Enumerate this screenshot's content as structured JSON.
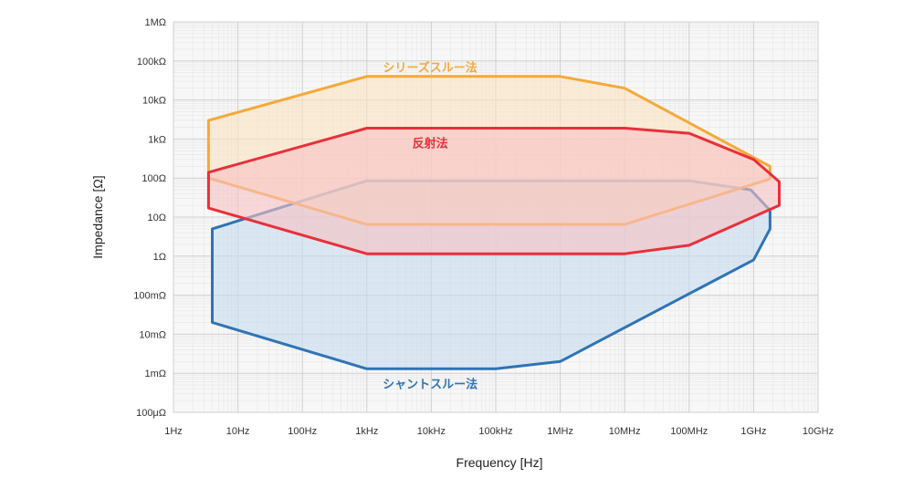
{
  "chart_data": {
    "type": "area",
    "xlabel": "Frequency [Hz]",
    "ylabel": "Impedance [Ω]",
    "x_scale": "log",
    "y_scale": "log",
    "xlim": [
      1,
      10000000000
    ],
    "ylim": [
      0.0001,
      1000000
    ],
    "grid": true,
    "x_ticks": [
      {
        "value": 1,
        "label": "1Hz"
      },
      {
        "value": 10,
        "label": "10Hz"
      },
      {
        "value": 100,
        "label": "100Hz"
      },
      {
        "value": 1000,
        "label": "1kHz"
      },
      {
        "value": 10000,
        "label": "10kHz"
      },
      {
        "value": 100000,
        "label": "100kHz"
      },
      {
        "value": 1000000,
        "label": "1MHz"
      },
      {
        "value": 10000000,
        "label": "10MHz"
      },
      {
        "value": 100000000,
        "label": "100MHz"
      },
      {
        "value": 1000000000,
        "label": "1GHz"
      },
      {
        "value": 10000000000,
        "label": "10GHz"
      }
    ],
    "y_ticks": [
      {
        "value": 0.0001,
        "label": "100μΩ"
      },
      {
        "value": 0.001,
        "label": "1mΩ"
      },
      {
        "value": 0.01,
        "label": "10mΩ"
      },
      {
        "value": 0.1,
        "label": "100mΩ"
      },
      {
        "value": 1,
        "label": "1Ω"
      },
      {
        "value": 10,
        "label": "10Ω"
      },
      {
        "value": 100,
        "label": "100Ω"
      },
      {
        "value": 1000,
        "label": "1kΩ"
      },
      {
        "value": 10000,
        "label": "10kΩ"
      },
      {
        "value": 100000,
        "label": "100kΩ"
      },
      {
        "value": 1000000,
        "label": "1MΩ"
      }
    ],
    "series": [
      {
        "name": "シャントスルー法",
        "color": "#2f74b5",
        "fill": "#c6dcef",
        "label_at": [
          30000000,
          0.00055
        ],
        "points": [
          [
            4,
            5
          ],
          [
            1000,
            85
          ],
          [
            100000000,
            85
          ],
          [
            900000000,
            50
          ],
          [
            1800000000,
            15
          ],
          [
            1800000000,
            5
          ],
          [
            1000000000,
            0.8
          ],
          [
            1000000,
            0.002
          ],
          [
            100000,
            0.0013
          ],
          [
            1000,
            0.0013
          ],
          [
            4,
            0.02
          ]
        ]
      },
      {
        "name": "シリーズスルー法",
        "color": "#f4a93a",
        "fill": "#fbe3c0",
        "label_at": [
          30000000,
          70000
        ],
        "points": [
          [
            3.5,
            3000
          ],
          [
            1000,
            40000
          ],
          [
            1000000,
            40000
          ],
          [
            10000000,
            20000
          ],
          [
            1800000000,
            200
          ],
          [
            1800000000,
            95
          ],
          [
            10000000,
            6.5
          ],
          [
            1000,
            6.5
          ],
          [
            3.5,
            100
          ]
        ]
      },
      {
        "name": "反射法",
        "color": "#e8303a",
        "fill": "#f6c2c3",
        "label_at": [
          30000000,
          800
        ],
        "points": [
          [
            3.5,
            140
          ],
          [
            1000,
            1900
          ],
          [
            10000000,
            1900
          ],
          [
            100000000,
            1400
          ],
          [
            1000000000,
            300
          ],
          [
            2500000000,
            80
          ],
          [
            2500000000,
            20
          ],
          [
            100000000,
            1.9
          ],
          [
            10000000,
            1.15
          ],
          [
            1000,
            1.15
          ],
          [
            3.5,
            17
          ]
        ]
      }
    ]
  }
}
